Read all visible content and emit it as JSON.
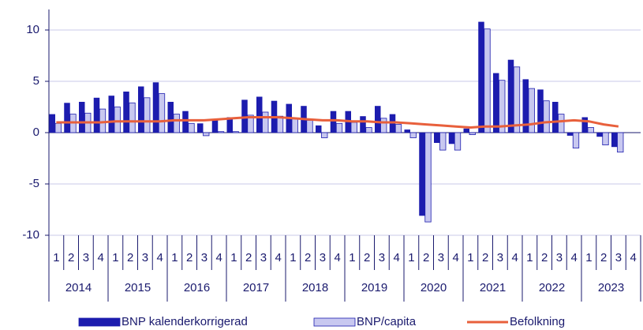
{
  "chart_data": {
    "type": "bar",
    "categories": [
      "1",
      "2",
      "3",
      "4",
      "1",
      "2",
      "3",
      "4",
      "1",
      "2",
      "3",
      "4",
      "1",
      "2",
      "3",
      "4",
      "1",
      "2",
      "3",
      "4",
      "1",
      "2",
      "3",
      "4",
      "1",
      "2",
      "3",
      "4",
      "1",
      "2",
      "3",
      "4",
      "1",
      "2",
      "3",
      "4",
      "1",
      "2",
      "3",
      "4"
    ],
    "groups": [
      "2014",
      "2015",
      "2016",
      "2017",
      "2018",
      "2019",
      "2020",
      "2021",
      "2022",
      "2023"
    ],
    "series": [
      {
        "name": "BNP kalenderkorrigerad",
        "type": "bar",
        "color": "#1c1cae",
        "values": [
          1.8,
          2.9,
          3.0,
          3.4,
          3.6,
          4.0,
          4.5,
          4.9,
          3.0,
          2.1,
          0.9,
          1.3,
          1.5,
          3.2,
          3.5,
          3.1,
          2.8,
          2.6,
          0.7,
          2.1,
          2.1,
          1.6,
          2.6,
          1.8,
          0.3,
          -8.1,
          -1.0,
          -1.1,
          0.4,
          10.8,
          5.8,
          7.1,
          5.2,
          4.2,
          3.0,
          -0.3,
          1.5,
          -0.4,
          -1.4,
          null
        ]
      },
      {
        "name": "BNP/capita",
        "type": "bar",
        "color": "#c8c8f0",
        "values": [
          0.9,
          1.8,
          1.9,
          2.3,
          2.5,
          2.9,
          3.4,
          3.8,
          1.8,
          0.9,
          -0.3,
          0.1,
          0.1,
          1.7,
          2.0,
          1.6,
          1.4,
          1.2,
          -0.5,
          0.9,
          1.0,
          0.5,
          1.4,
          0.8,
          -0.5,
          -8.7,
          -1.7,
          -1.7,
          -0.2,
          10.1,
          5.1,
          6.4,
          4.3,
          3.1,
          1.8,
          -1.5,
          0.5,
          -1.2,
          -1.9,
          null
        ]
      },
      {
        "name": "Befolkning",
        "type": "line",
        "color": "#e8603c",
        "values": [
          1.0,
          1.0,
          1.0,
          1.0,
          1.1,
          1.1,
          1.1,
          1.1,
          1.2,
          1.2,
          1.2,
          1.3,
          1.4,
          1.5,
          1.5,
          1.5,
          1.4,
          1.3,
          1.2,
          1.2,
          1.1,
          1.1,
          1.0,
          1.0,
          0.9,
          0.8,
          0.7,
          0.6,
          0.5,
          0.6,
          0.6,
          0.7,
          0.8,
          1.0,
          1.1,
          1.2,
          1.1,
          0.8,
          0.6,
          null
        ]
      }
    ],
    "ylim": [
      -10,
      12
    ],
    "yticks": [
      -10,
      -5,
      0,
      5,
      10
    ],
    "grid": true,
    "legend": "bottom"
  }
}
